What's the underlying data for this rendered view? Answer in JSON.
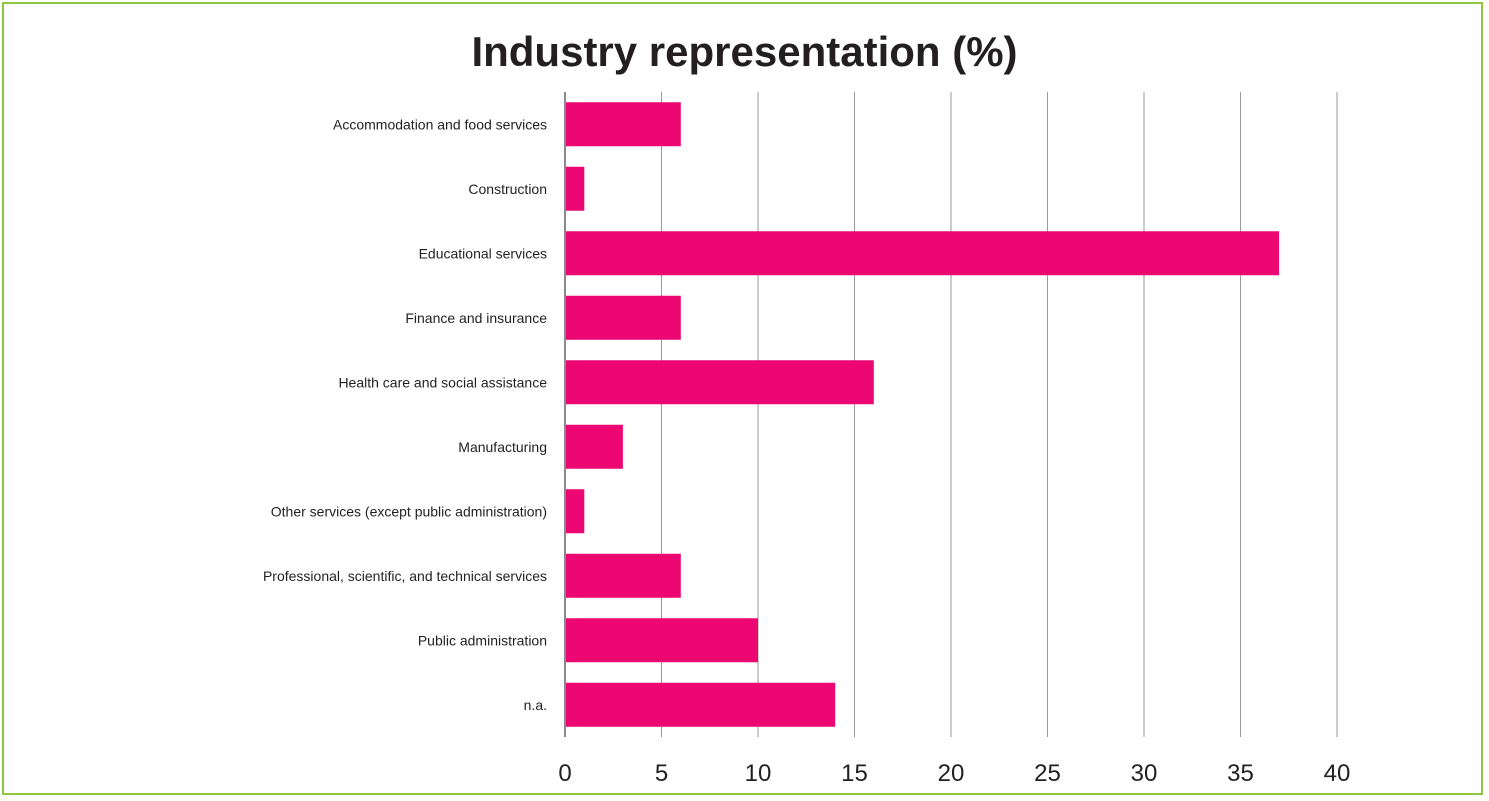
{
  "colors": {
    "bar": "#ec0772",
    "frame": "#8dc63f",
    "grid": "#9a9a9a",
    "axis": "#8a8a8a",
    "text": "#231f20"
  },
  "chart_data": {
    "type": "bar",
    "orientation": "horizontal",
    "title": "Industry representation (%)",
    "xlabel": "",
    "ylabel": "",
    "xlim": [
      0,
      40
    ],
    "x_ticks": [
      0,
      5,
      10,
      15,
      20,
      25,
      30,
      35,
      40
    ],
    "grid": true,
    "legend": "none",
    "categories": [
      "Accommodation and food services",
      "Construction",
      "Educational services",
      "Finance and insurance",
      "Health care and social assistance",
      "Manufacturing",
      "Other services (except public administration)",
      "Professional, scientific, and technical services",
      "Public administration",
      "n.a."
    ],
    "values": [
      6,
      1,
      37,
      6,
      16,
      3,
      1,
      6,
      10,
      14
    ]
  }
}
